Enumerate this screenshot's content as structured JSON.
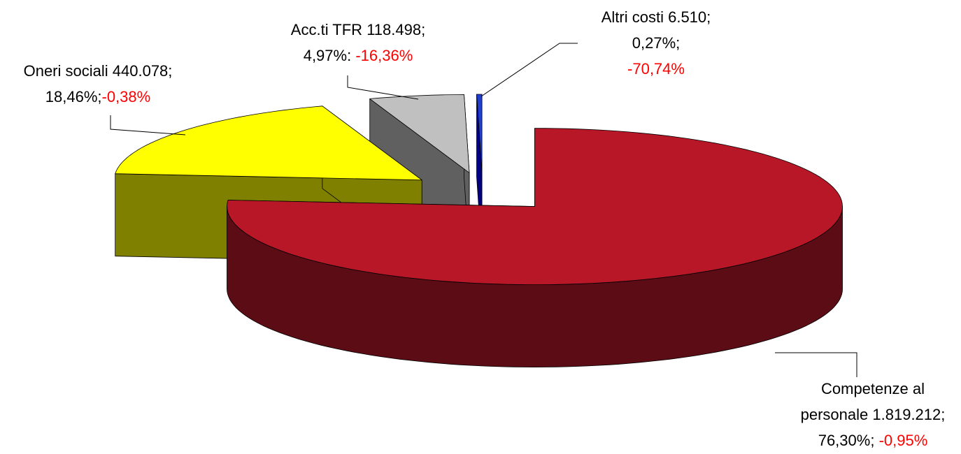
{
  "chart_data": {
    "type": "pie",
    "categories": [
      "Competenze al personale",
      "Oneri sociali",
      "Acc.ti TFR",
      "Altri costi"
    ],
    "values": [
      1819212,
      440078,
      118498,
      6510
    ],
    "value_labels": [
      "1.819.212;",
      "440.078;",
      "118.498;",
      "6.510;"
    ],
    "percents": [
      76.3,
      18.46,
      4.97,
      0.27
    ],
    "percent_labels": [
      "76,30%;",
      "18,46%;",
      "4,97%:",
      "0,27%;"
    ],
    "changes": [
      -0.95,
      -0.38,
      -16.36,
      -70.74
    ],
    "change_labels": [
      "-0,95%",
      "-0,38%",
      "-16,36%",
      "-70,74%"
    ],
    "colors": [
      "#b71727",
      "#ffff00",
      "#c0c0c0",
      "#1f3fd0"
    ],
    "side_colors": [
      "#5c0c14",
      "#808000",
      "#606060",
      "#000080"
    ],
    "change_color": "#ff0000"
  }
}
